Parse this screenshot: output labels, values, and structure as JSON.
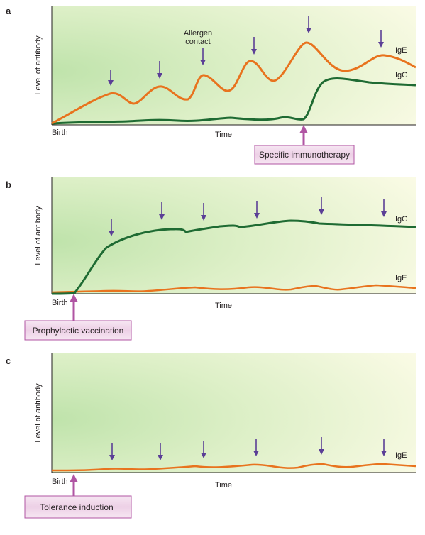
{
  "colors": {
    "ige": "#e8731e",
    "igg": "#1f6b33",
    "arrow": "#5b3f96",
    "intervention": "#b055a3",
    "box_fill": "#f1d9ec",
    "bg_left": "#c4e6b1",
    "bg_right": "#fbfbe6"
  },
  "panels": [
    {
      "letter": "a",
      "y_label": "Level of antibody",
      "x_label": "Time",
      "origin_label": "Birth",
      "annotation": [
        "Allergen",
        "contact"
      ],
      "series_labels": [
        "IgE",
        "IgG"
      ],
      "intervention": "Specific immunotherapy"
    },
    {
      "letter": "b",
      "y_label": "Level of antibody",
      "x_label": "Time",
      "origin_label": "Birth",
      "series_labels": [
        "IgG",
        "IgE"
      ],
      "intervention": "Prophylactic vaccination"
    },
    {
      "letter": "c",
      "y_label": "Level of antibody",
      "x_label": "Time",
      "origin_label": "Birth",
      "series_labels": [
        "IgE"
      ],
      "intervention": "Tolerance induction"
    }
  ]
}
